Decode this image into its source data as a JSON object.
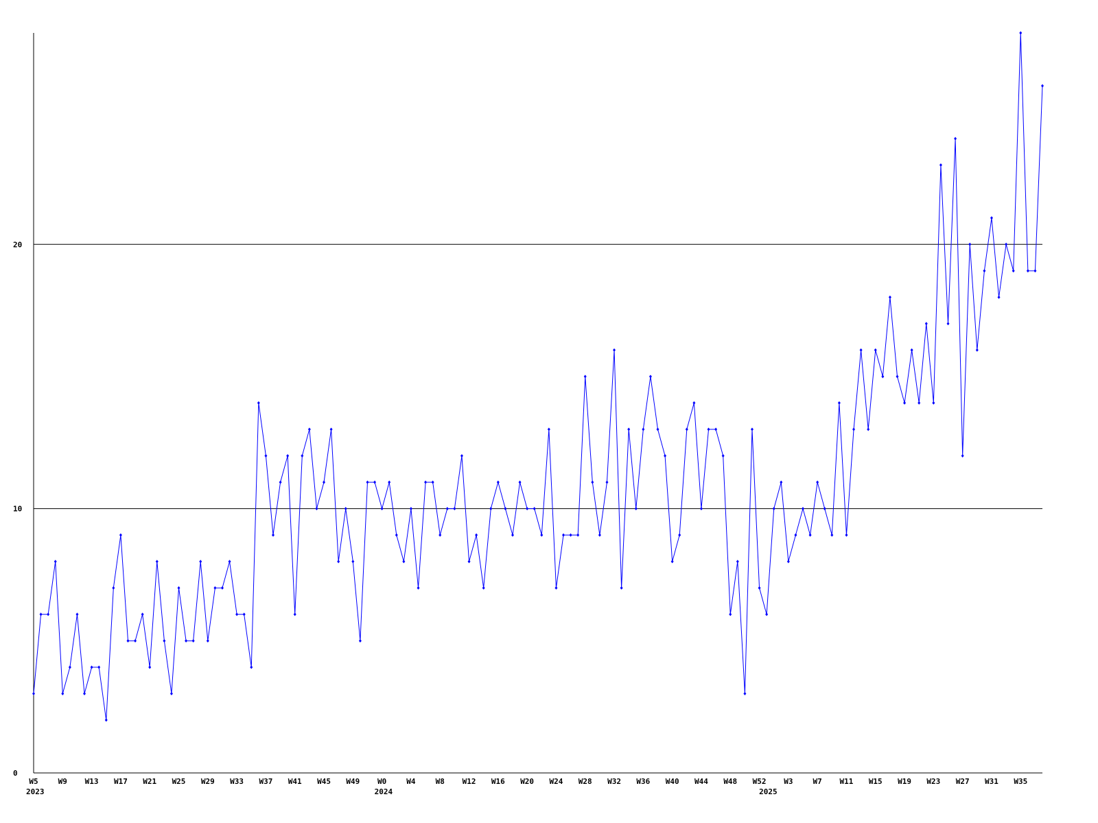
{
  "chart_data": {
    "type": "line",
    "categories": [
      "W5",
      null,
      null,
      null,
      "W9",
      null,
      null,
      null,
      "W13",
      null,
      null,
      null,
      "W17",
      null,
      null,
      null,
      "W21",
      null,
      null,
      null,
      "W25",
      null,
      null,
      null,
      "W29",
      null,
      null,
      null,
      "W33",
      null,
      null,
      null,
      "W37",
      null,
      null,
      null,
      "W41",
      null,
      null,
      null,
      "W45",
      null,
      null,
      null,
      "W49",
      null,
      null,
      null,
      "W0",
      null,
      null,
      null,
      "W4",
      null,
      null,
      null,
      "W8",
      null,
      null,
      null,
      "W12",
      null,
      null,
      null,
      "W16",
      null,
      null,
      null,
      "W20",
      null,
      null,
      null,
      "W24",
      null,
      null,
      null,
      "W28",
      null,
      null,
      null,
      "W32",
      null,
      null,
      null,
      "W36",
      null,
      null,
      null,
      "W40",
      null,
      null,
      null,
      "W44",
      null,
      null,
      null,
      "W48",
      null,
      null,
      null,
      "W52",
      null,
      null,
      null,
      "W3",
      null,
      null,
      null,
      "W7",
      null,
      null,
      null,
      "W11",
      null,
      null,
      null,
      "W15",
      null,
      null,
      null,
      "W19",
      null,
      null,
      null,
      "W23",
      null,
      null,
      null,
      "W27",
      null,
      null,
      null,
      "W31",
      null,
      null,
      null,
      "W35",
      null,
      null,
      null
    ],
    "category_years": [
      "2023",
      null,
      null,
      null,
      null,
      null,
      null,
      null,
      null,
      null,
      null,
      null,
      null,
      null,
      null,
      null,
      null,
      null,
      null,
      null,
      null,
      null,
      null,
      null,
      null,
      null,
      null,
      null,
      null,
      null,
      null,
      null,
      null,
      null,
      null,
      null,
      null,
      null,
      null,
      null,
      null,
      null,
      null,
      null,
      null,
      null,
      null,
      null,
      "2024",
      null,
      null,
      null,
      null,
      null,
      null,
      null,
      null,
      null,
      null,
      null,
      null,
      null,
      null,
      null,
      null,
      null,
      null,
      null,
      null,
      null,
      null,
      null,
      null,
      null,
      null,
      null,
      null,
      null,
      null,
      null,
      null,
      null,
      null,
      null,
      null,
      null,
      null,
      null,
      null,
      null,
      null,
      null,
      null,
      null,
      null,
      null,
      null,
      null,
      null,
      null,
      null,
      "2025",
      null,
      null,
      null,
      null,
      null,
      null,
      null,
      null,
      null,
      null,
      null,
      null,
      null,
      null,
      null,
      null,
      null,
      null,
      null,
      null,
      null,
      null,
      null,
      null,
      null,
      null,
      null,
      null,
      null,
      null,
      null,
      null,
      null,
      null,
      null,
      null,
      null,
      null
    ],
    "series": [
      {
        "color": "#0000ff",
        "values": [
          3,
          6,
          6,
          8,
          3,
          4,
          6,
          3,
          4,
          4,
          2,
          7,
          9,
          5,
          5,
          6,
          4,
          8,
          5,
          3,
          7,
          5,
          5,
          8,
          5,
          7,
          7,
          8,
          6,
          6,
          4,
          14,
          12,
          9,
          11,
          12,
          6,
          12,
          13,
          10,
          11,
          13,
          8,
          10,
          8,
          5,
          11,
          11,
          10,
          11,
          9,
          8,
          10,
          7,
          11,
          11,
          9,
          10,
          10,
          12,
          8,
          9,
          7,
          10,
          11,
          10,
          9,
          11,
          10,
          10,
          9,
          13,
          7,
          9,
          9,
          9,
          15,
          11,
          9,
          11,
          16,
          7,
          13,
          10,
          13,
          15,
          13,
          12,
          8,
          9,
          13,
          14,
          10,
          13,
          13,
          12,
          6,
          8,
          3,
          13,
          7,
          6,
          10,
          11,
          8,
          9,
          10,
          9,
          11,
          10,
          9,
          14,
          9,
          13,
          16,
          13,
          16,
          15,
          18,
          15,
          14,
          16,
          14,
          17,
          14,
          23,
          17,
          24,
          12,
          20,
          16,
          19,
          21,
          18,
          20,
          19,
          28,
          19,
          19,
          26
        ]
      }
    ],
    "ylim": [
      0,
      28
    ],
    "yticks": [
      0,
      10,
      20
    ],
    "grid": true
  }
}
